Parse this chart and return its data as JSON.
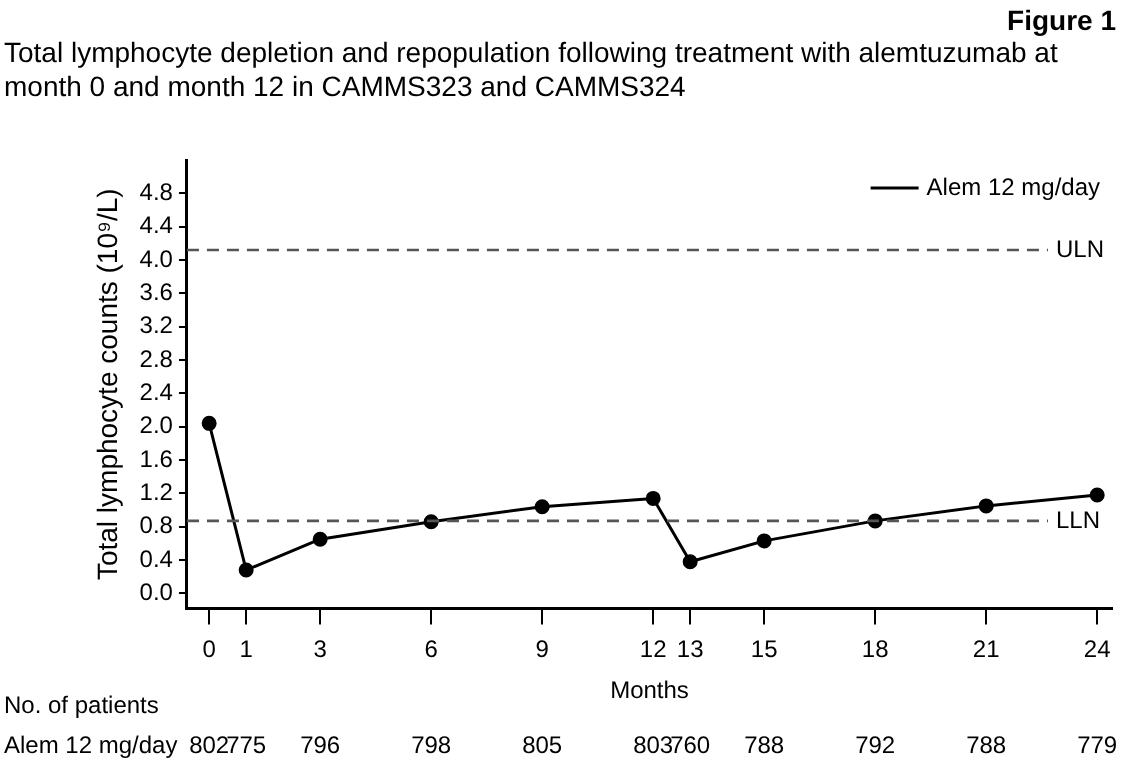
{
  "chart_data": {
    "type": "line",
    "title": "Figure 1",
    "subtitle": "Total lymphocyte depletion and repopulation following treatment with alemtuzumab at month 0 and month 12 in CAMMS323 and CAMMS324",
    "xlabel": "Months",
    "ylabel": "Total lymphocyte counts (10⁹/L)",
    "x": [
      0,
      1,
      3,
      6,
      9,
      12,
      13,
      15,
      18,
      21,
      24
    ],
    "series": [
      {
        "name": "Alem 12 mg/day",
        "color": "#000000",
        "values": [
          2.04,
          0.28,
          0.65,
          0.86,
          1.04,
          1.14,
          0.38,
          0.63,
          0.87,
          1.05,
          1.18
        ]
      }
    ],
    "xlim": [
      -0.6,
      24.4
    ],
    "xticks": [
      0,
      1,
      3,
      6,
      9,
      12,
      13,
      15,
      18,
      21,
      24
    ],
    "ylim": [
      -0.18,
      5.2
    ],
    "yticks": [
      {
        "value": 0,
        "label": "0.0"
      },
      {
        "value": 0.4,
        "label": "0.4"
      },
      {
        "value": 0.8,
        "label": "0.8"
      },
      {
        "value": 1.2,
        "label": "1.2"
      },
      {
        "value": 1.6,
        "label": "1.6"
      },
      {
        "value": 2,
        "label": "2.0"
      },
      {
        "value": 2.4,
        "label": "2.4"
      },
      {
        "value": 2.8,
        "label": "2.8"
      },
      {
        "value": 3.2,
        "label": "3.2"
      },
      {
        "value": 3.6,
        "label": "3.6"
      },
      {
        "value": 4,
        "label": "4.0"
      },
      {
        "value": 4.4,
        "label": "4.4"
      },
      {
        "value": 4.8,
        "label": "4.8"
      }
    ],
    "ref_lines": [
      {
        "axis": "y",
        "value": 4.12,
        "label": "ULN",
        "color": "#555555",
        "line_style": "dashed"
      },
      {
        "axis": "y",
        "value": 0.87,
        "label": "LLN",
        "color": "#555555",
        "line_style": "dashed"
      }
    ],
    "annotations": [
      "No. of patients",
      "Alem 12 mg/day",
      "802",
      "775",
      "796",
      "798",
      "805",
      "803",
      "760",
      "788",
      "792",
      "788",
      "779"
    ],
    "grid": false,
    "legend": "top right",
    "marker": "circle",
    "line_style": "solid"
  }
}
